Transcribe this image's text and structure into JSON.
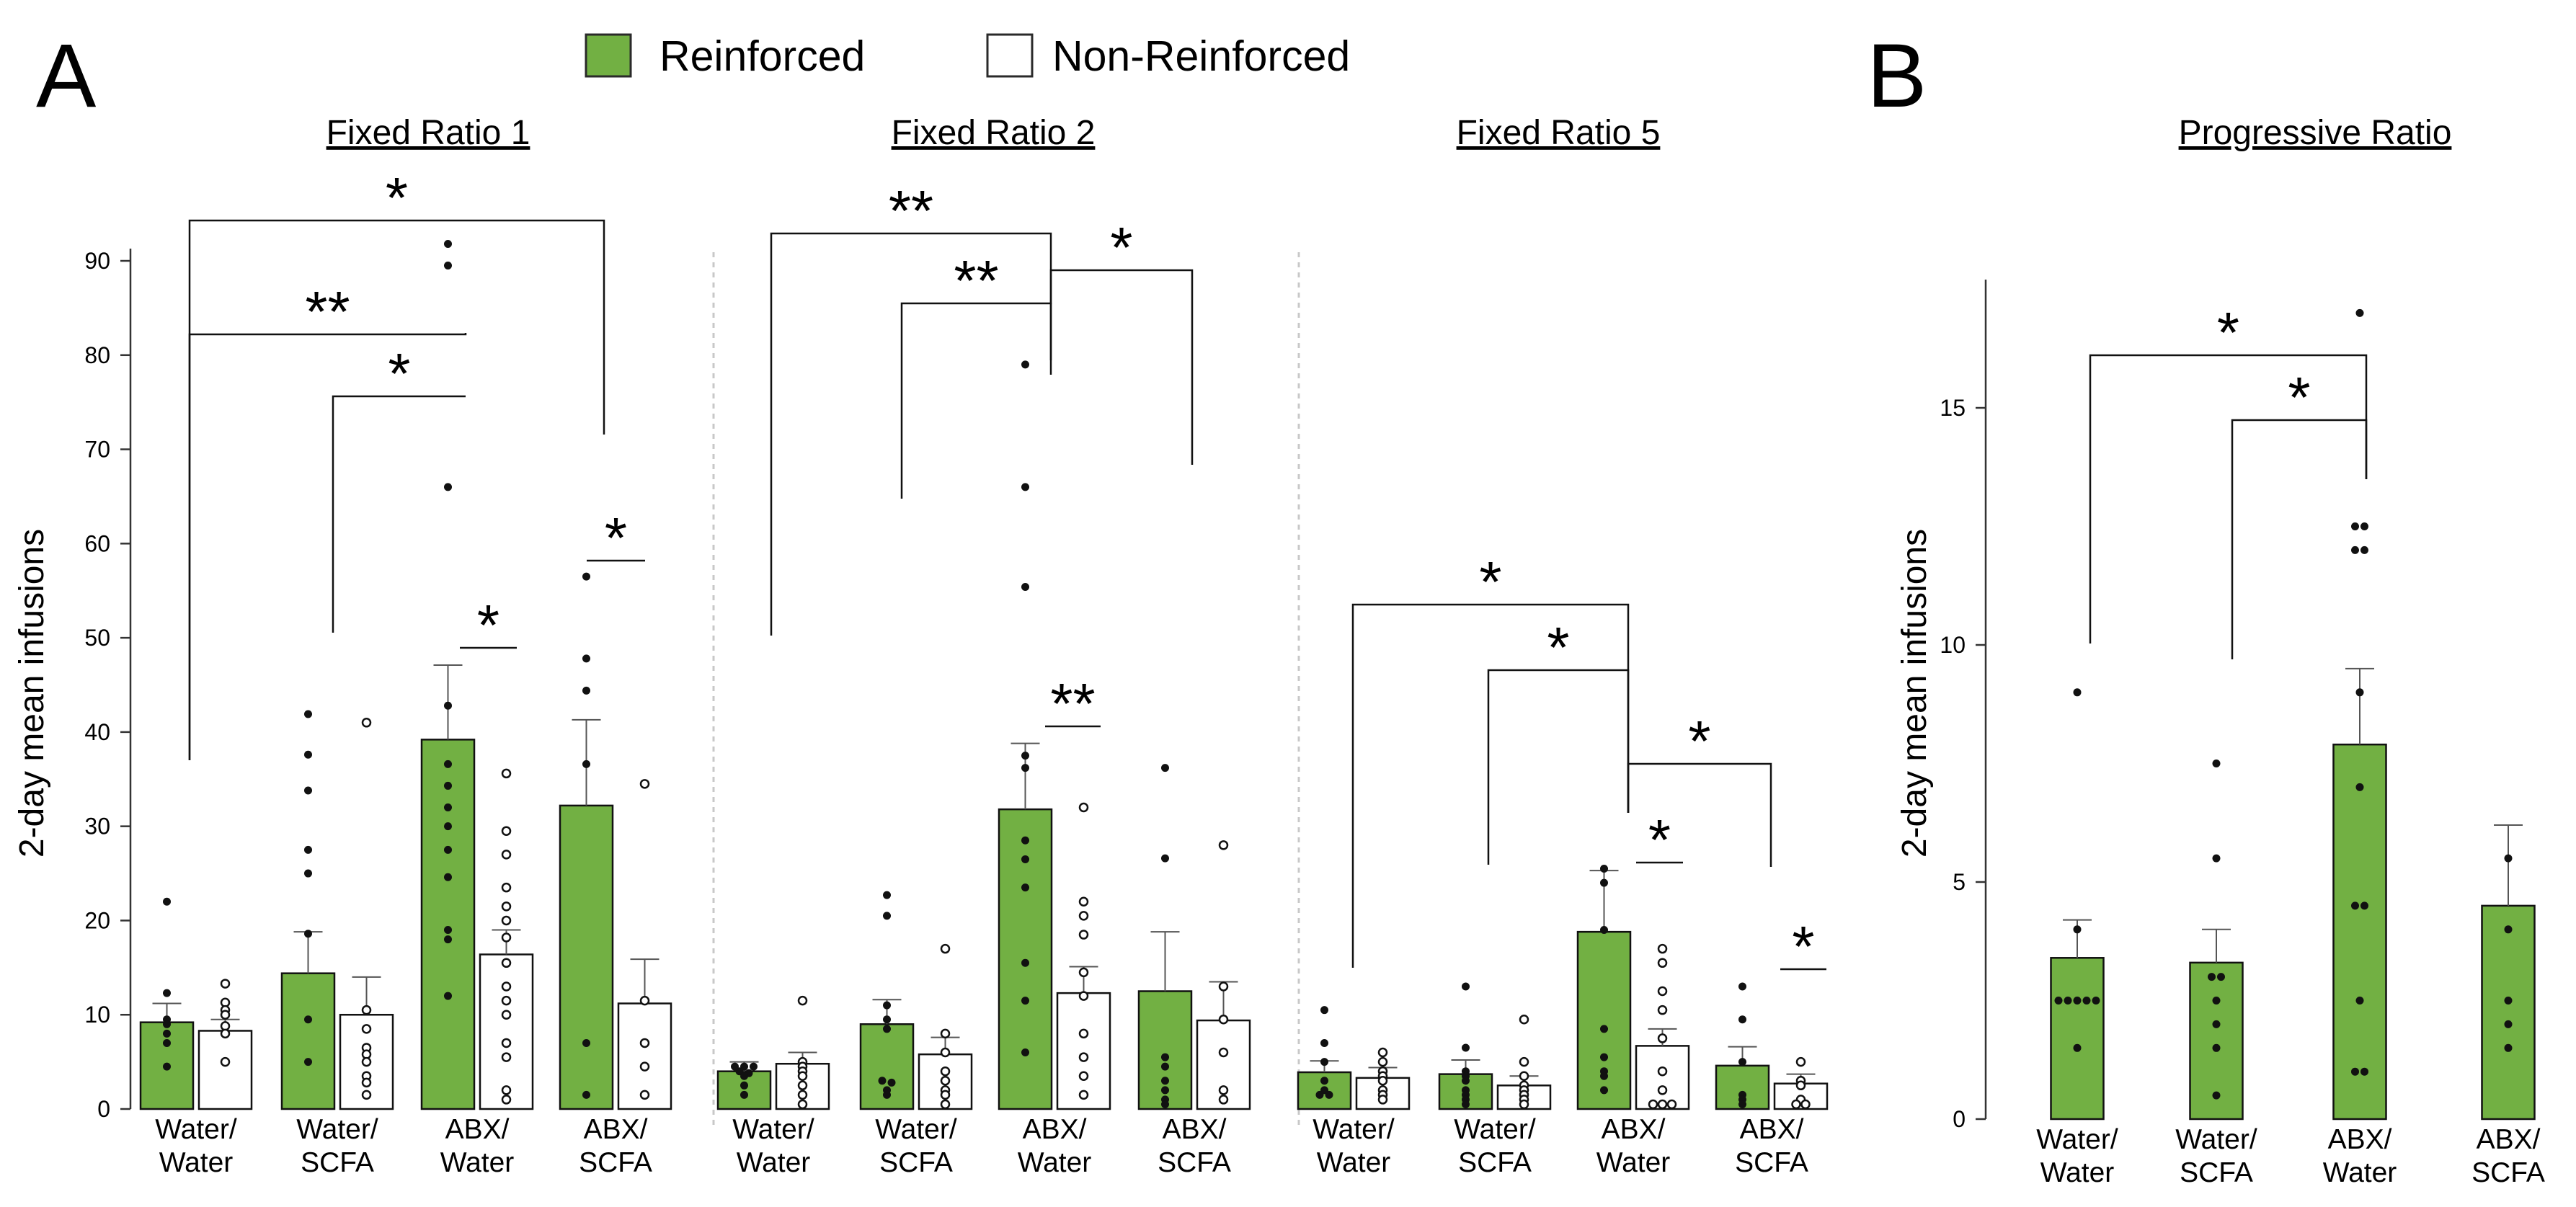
{
  "panel_labels": [
    "A",
    "B"
  ],
  "legend": [
    {
      "label": "Reinforced",
      "fill": "#72b043",
      "stroke": "#2a2a2a"
    },
    {
      "label": "Non-Reinforced",
      "fill": "#ffffff",
      "stroke": "#2a2a2a"
    }
  ],
  "colors": {
    "reinforced": "#72b043",
    "non_reinforced": "#ffffff",
    "stroke": "#111111",
    "separator": "#c8c8c8"
  },
  "chart_data": [
    {
      "type": "bar",
      "title": "Fixed Ratio 1",
      "panel": "A",
      "ylabel": "2-day mean infusions",
      "ylim": [
        0,
        92
      ],
      "yticks": [
        0,
        10,
        20,
        30,
        40,
        50,
        60,
        70,
        80,
        90
      ],
      "categories": [
        "Water/ Water",
        "Water/ SCFA",
        "ABX/ Water",
        "ABX/ SCFA"
      ],
      "series": [
        {
          "name": "Reinforced",
          "values": [
            9.2,
            14.4,
            39.2,
            32.2
          ],
          "errors": [
            2.0,
            4.4,
            7.9,
            9.1
          ],
          "points": [
            [
              22,
              12.3,
              9.5,
              9,
              8,
              7,
              4.5
            ],
            [
              41.9,
              37.6,
              33.8,
              27.5,
              25,
              18.6,
              9.5,
              5
            ],
            [
              91.8,
              89.5,
              66,
              42.8,
              36.6,
              34.3,
              32,
              30,
              27.5,
              24.6,
              19,
              18,
              12
            ],
            [
              56.5,
              47.8,
              44.4,
              36.6,
              7,
              1.5
            ]
          ]
        },
        {
          "name": "Non-Reinforced",
          "values": [
            8.3,
            10.0,
            16.4,
            11.2
          ],
          "errors": [
            1.2,
            4.0,
            2.6,
            4.7
          ],
          "points": [
            [
              13.3,
              11.3,
              10.5,
              10,
              8.8,
              8,
              5
            ],
            [
              41,
              10.5,
              8.5,
              6.5,
              5.8,
              5,
              3.5,
              2.8,
              1.5
            ],
            [
              35.6,
              29.5,
              27,
              23.5,
              21.5,
              20,
              18.2,
              15.5,
              13,
              11.5,
              10,
              7,
              5.5,
              2,
              1
            ],
            [
              34.5,
              11.5,
              7,
              4.5,
              1.5
            ]
          ]
        }
      ],
      "significance": [
        {
          "label": "*",
          "between": "Water/Water vs ABX/SCFA"
        },
        {
          "label": "**",
          "between": "Water/Water vs ABX/Water"
        },
        {
          "label": "*",
          "between": "Water/SCFA vs ABX/Water"
        },
        {
          "label": "*",
          "between": "ABX/Water Reinforced vs Non-Reinforced"
        },
        {
          "label": "*",
          "between": "ABX/SCFA Reinforced vs Non-Reinforced"
        }
      ]
    },
    {
      "type": "bar",
      "title": "Fixed Ratio 2",
      "panel": "A",
      "ylim": [
        0,
        92
      ],
      "categories": [
        "Water/ Water",
        "Water/ SCFA",
        "ABX/ Water",
        "ABX/ SCFA"
      ],
      "series": [
        {
          "name": "Reinforced",
          "values": [
            4.0,
            9.0,
            31.8,
            12.5
          ],
          "errors": [
            1.0,
            2.6,
            7.0,
            6.3
          ],
          "points": [
            [
              4.5,
              4.5,
              4.5,
              4,
              3.8,
              3.5,
              2.5,
              1.5
            ],
            [
              22.7,
              20.5,
              11,
              9.5,
              8.5,
              3,
              2.8,
              2,
              1.5
            ],
            [
              79,
              66,
              55.4,
              37.5,
              36.2,
              28.5,
              26.5,
              23.5,
              15.5,
              11.5,
              6
            ],
            [
              36.2,
              26.6,
              5.5,
              4.5,
              3,
              2,
              1,
              0.5
            ]
          ]
        },
        {
          "name": "Non-Reinforced",
          "values": [
            4.8,
            5.8,
            12.3,
            9.4
          ],
          "errors": [
            1.2,
            1.8,
            2.8,
            4.1
          ],
          "points": [
            [
              11.5,
              5,
              4.5,
              4,
              3.5,
              2.5,
              1.5,
              0.5
            ],
            [
              17,
              8,
              6,
              4,
              3,
              2,
              1.5,
              0.5
            ],
            [
              32,
              22,
              20.5,
              18.5,
              14.5,
              12,
              8,
              5.5,
              3.5,
              1.5
            ],
            [
              28,
              13,
              9.5,
              6,
              2,
              1
            ]
          ]
        }
      ],
      "significance": [
        {
          "label": "**",
          "between": "Water/Water vs ABX/Water"
        },
        {
          "label": "**",
          "between": "Water/SCFA vs ABX/Water"
        },
        {
          "label": "*",
          "between": "ABX/Water vs ABX/SCFA"
        },
        {
          "label": "**",
          "between": "ABX/Water Reinforced vs Non-Reinforced"
        }
      ]
    },
    {
      "type": "bar",
      "title": "Fixed Ratio 5",
      "panel": "A",
      "ylim": [
        0,
        92
      ],
      "categories": [
        "Water/ Water",
        "Water/ SCFA",
        "ABX/ Water",
        "ABX/ SCFA"
      ],
      "series": [
        {
          "name": "Reinforced",
          "values": [
            3.9,
            3.7,
            18.8,
            4.6
          ],
          "errors": [
            1.2,
            1.5,
            6.5,
            2.0
          ],
          "points": [
            [
              10.5,
              7,
              5,
              3,
              2,
              1.5,
              1.5
            ],
            [
              13,
              6.5,
              4,
              3.5,
              3,
              2,
              1.5,
              1,
              0.5
            ],
            [
              25.5,
              24,
              19,
              8.5,
              5.5,
              4,
              3.5,
              2
            ],
            [
              13,
              9.5,
              5,
              1.5,
              1,
              0.5
            ]
          ]
        },
        {
          "name": "Non-Reinforced",
          "values": [
            3.3,
            2.5,
            6.7,
            2.7
          ],
          "errors": [
            1.1,
            1.0,
            1.8,
            1.0
          ],
          "points": [
            [
              6,
              5,
              4,
              3.5,
              3,
              2,
              1.5,
              1
            ],
            [
              9.5,
              5,
              3.5,
              2.5,
              2,
              1.5,
              1,
              0.5
            ],
            [
              17,
              15.5,
              12.5,
              10.5,
              7.5,
              4,
              2,
              0.5,
              0.5,
              0.5
            ],
            [
              5,
              3,
              2.5,
              1,
              0.5,
              0.5
            ]
          ]
        }
      ],
      "significance": [
        {
          "label": "*",
          "between": "Water/Water vs ABX/Water"
        },
        {
          "label": "*",
          "between": "Water/SCFA vs ABX/Water"
        },
        {
          "label": "*",
          "between": "ABX/Water vs ABX/SCFA"
        },
        {
          "label": "*",
          "between": "ABX/Water Reinforced vs Non-Reinforced"
        },
        {
          "label": "*",
          "between": "ABX/SCFA Reinforced vs Non-Reinforced"
        }
      ]
    },
    {
      "type": "bar",
      "title": "Progressive Ratio",
      "panel": "B",
      "ylabel": "2-day mean infusions",
      "ylim": [
        0,
        17.5
      ],
      "yticks": [
        0,
        5,
        10,
        15
      ],
      "categories": [
        "Water/ Water",
        "Water/ SCFA",
        "ABX/ Water",
        "ABX/ SCFA"
      ],
      "series": [
        {
          "name": "Reinforced",
          "values": [
            3.4,
            3.3,
            7.9,
            4.5
          ],
          "errors": [
            0.8,
            0.7,
            1.6,
            1.7
          ],
          "points": [
            [
              9,
              4,
              2.5,
              2.5,
              2.5,
              2.5,
              2.5,
              1.5
            ],
            [
              7.5,
              5.5,
              3,
              3,
              2.5,
              2,
              1.5,
              0.5
            ],
            [
              17,
              12.5,
              12.5,
              12,
              12,
              9,
              7,
              4.5,
              4.5,
              2.5,
              1,
              1
            ],
            [
              5.5,
              4,
              2.5,
              2,
              1.5
            ]
          ]
        }
      ],
      "significance": [
        {
          "label": "*",
          "between": "Water/Water vs ABX/Water"
        },
        {
          "label": "*",
          "between": "Water/SCFA vs ABX/Water"
        }
      ]
    }
  ]
}
